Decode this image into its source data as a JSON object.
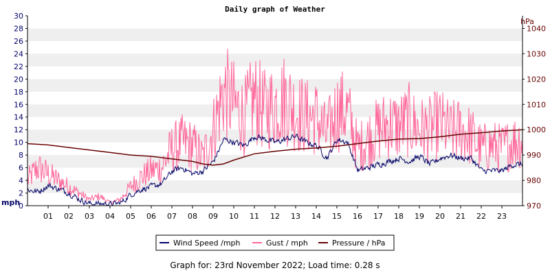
{
  "title": "Daily graph of Weather",
  "footer": "Graph for: 23rd November 2022; Load time: 0.28 s",
  "colors": {
    "wind": "#000066",
    "gust": "#ff6699",
    "pressure": "#660000",
    "band": "#efefef",
    "left_axis_text": "#000066",
    "right_axis_text": "#660000"
  },
  "chart_data": {
    "type": "line",
    "title": "Daily graph of Weather",
    "xlabel": "",
    "x_ticks": [
      "01",
      "02",
      "03",
      "04",
      "05",
      "06",
      "07",
      "08",
      "09",
      "10",
      "11",
      "12",
      "13",
      "14",
      "15",
      "16",
      "17",
      "18",
      "19",
      "20",
      "21",
      "22",
      "23"
    ],
    "xlim": [
      0,
      24
    ],
    "y_left": {
      "label": "mph",
      "lim": [
        0,
        30
      ],
      "ticks": [
        0,
        2,
        4,
        6,
        8,
        10,
        12,
        14,
        16,
        18,
        20,
        22,
        24,
        26,
        28,
        30
      ]
    },
    "y_right": {
      "label": "hPa",
      "lim": [
        970,
        1045
      ],
      "ticks": [
        970,
        980,
        990,
        1000,
        1010,
        1020,
        1030,
        1040
      ]
    },
    "grid": "horizontal alternating bands",
    "legend": {
      "placement": "bottom-center",
      "entries": [
        "Wind Speed /mph",
        "Gust / mph",
        "Pressure / hPa"
      ]
    },
    "series": [
      {
        "name": "Wind Speed /mph",
        "axis": "left",
        "x": [
          0,
          0.5,
          1,
          1.5,
          2,
          2.5,
          3,
          3.5,
          4,
          4.5,
          5,
          5.5,
          6,
          6.5,
          7,
          7.5,
          8,
          8.5,
          9,
          9.5,
          10,
          10.5,
          11,
          11.5,
          12,
          12.5,
          13,
          13.5,
          14,
          14.5,
          15,
          15.5,
          16,
          16.5,
          17,
          17.5,
          18,
          18.5,
          19,
          19.5,
          20,
          20.5,
          21,
          21.5,
          22,
          22.5,
          23,
          23.5,
          24
        ],
        "values": [
          2.5,
          2.2,
          3.2,
          2.6,
          2.0,
          1.0,
          0.3,
          0.3,
          0.2,
          0.4,
          1.8,
          2.6,
          3.0,
          3.5,
          5.5,
          6.0,
          5.0,
          5.5,
          7.0,
          10.5,
          10.0,
          9.5,
          11.0,
          10.5,
          10.0,
          10.5,
          11.0,
          10.0,
          9.5,
          7.5,
          10.5,
          10.0,
          5.5,
          6.0,
          6.5,
          7.0,
          7.5,
          7.0,
          7.8,
          6.5,
          7.5,
          8.0,
          7.5,
          7.5,
          5.5,
          5.5,
          5.5,
          6.5,
          6.5
        ]
      },
      {
        "name": "Gust / mph",
        "axis": "left",
        "x": [
          0,
          0.5,
          1,
          1.5,
          2,
          2.5,
          3,
          3.5,
          4,
          4.5,
          5,
          5.5,
          6,
          6.5,
          7,
          7.5,
          8,
          8.5,
          9,
          9.5,
          10,
          10.5,
          11,
          11.5,
          12,
          12.5,
          13,
          13.5,
          14,
          14.5,
          15,
          15.5,
          16,
          16.5,
          17,
          17.5,
          18,
          18.5,
          19,
          19.5,
          20,
          20.5,
          21,
          21.5,
          22,
          22.5,
          23,
          23.5,
          24
        ],
        "values": [
          4.0,
          6.0,
          5.0,
          4.0,
          3.0,
          2.0,
          1.0,
          1.5,
          0.5,
          1.0,
          3.0,
          4.5,
          5.5,
          6.0,
          9.0,
          10.0,
          9.5,
          7.5,
          12.0,
          18.0,
          16.0,
          14.0,
          17.0,
          15.0,
          16.0,
          17.0,
          15.0,
          14.0,
          14.0,
          11.0,
          15.0,
          15.0,
          9.0,
          10.5,
          12.0,
          13.0,
          12.5,
          13.5,
          12.0,
          12.0,
          13.0,
          11.5,
          12.0,
          11.0,
          9.0,
          9.5,
          9.0,
          10.0,
          10.5
        ]
      },
      {
        "name": "Pressure / hPa",
        "axis": "right",
        "x": [
          0,
          1,
          2,
          3,
          4,
          5,
          6,
          7,
          8,
          8.5,
          9,
          9.5,
          10,
          11,
          12,
          13,
          14,
          15,
          16,
          17,
          18,
          19,
          20,
          21,
          22,
          23,
          24
        ],
        "values": [
          994.5,
          994.0,
          993.0,
          992.0,
          991.0,
          990.0,
          989.5,
          988.5,
          987.5,
          986.5,
          986.0,
          986.5,
          988.0,
          990.5,
          991.5,
          992.3,
          992.8,
          993.5,
          994.5,
          995.5,
          996.3,
          996.5,
          997.2,
          998.2,
          998.8,
          999.5,
          1000.0
        ]
      }
    ]
  }
}
